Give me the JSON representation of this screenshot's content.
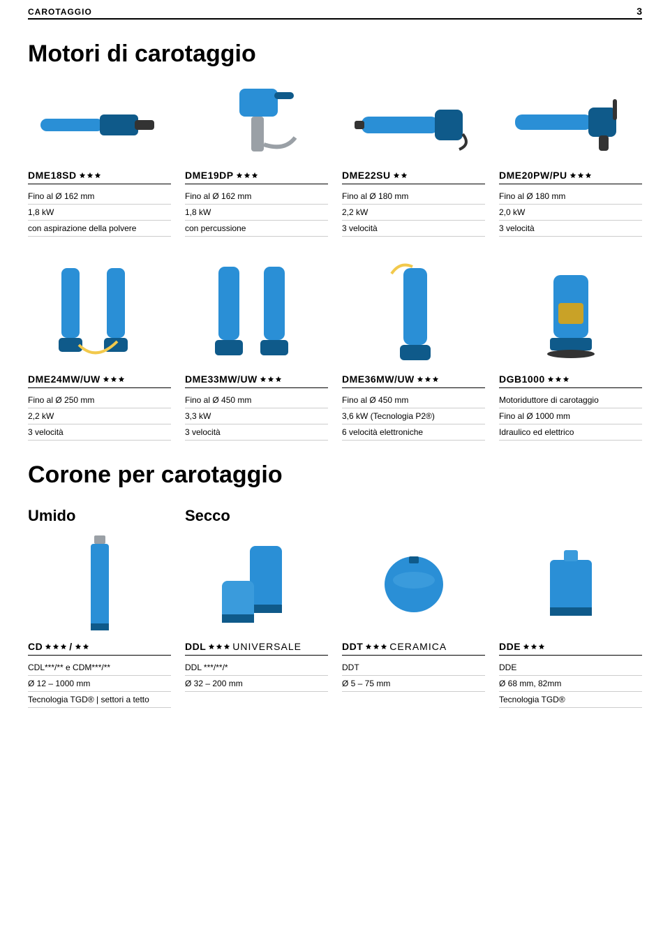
{
  "header": {
    "label": "CAROTAGGIO",
    "page": "3"
  },
  "section1": {
    "title": "Motori di carotaggio"
  },
  "row1": [
    {
      "name": "DME18SD",
      "stars": 3,
      "specs": [
        "Fino al Ø 162 mm",
        "1,8 kW",
        "con aspirazione della polvere"
      ]
    },
    {
      "name": "DME19DP",
      "stars": 3,
      "specs": [
        "Fino al Ø 162 mm",
        "1,8 kW",
        "con percussione"
      ]
    },
    {
      "name": "DME22SU",
      "stars": 2,
      "specs": [
        "Fino al Ø 180 mm",
        "2,2 kW",
        "3 velocità"
      ]
    },
    {
      "name": "DME20PW/PU",
      "stars": 3,
      "specs": [
        "Fino al Ø 180 mm",
        "2,0 kW",
        "3 velocità"
      ]
    }
  ],
  "row2": [
    {
      "name": "DME24MW/UW",
      "stars": 3,
      "specs": [
        "Fino al Ø 250 mm",
        "2,2 kW",
        "3 velocità"
      ]
    },
    {
      "name": "DME33MW/UW",
      "stars": 3,
      "specs": [
        "Fino al Ø 450 mm",
        "3,3 kW",
        "3 velocità"
      ]
    },
    {
      "name": "DME36MW/UW",
      "stars": 3,
      "specs": [
        "Fino al Ø 450 mm",
        "3,6 kW (Tecnologia P2®)",
        "6 velocità elettroniche"
      ]
    },
    {
      "name": "DGB1000",
      "stars": 3,
      "specs": [
        "Motoriduttore di carotaggio",
        "Fino al Ø 1000 mm",
        "Idraulico ed elettrico"
      ]
    }
  ],
  "section2": {
    "title": "Corone per carotaggio"
  },
  "row3_labels": {
    "left": "Umido",
    "right": "Secco"
  },
  "row3": [
    {
      "name": "CD",
      "stars": 3,
      "extra": " / ",
      "stars2": 2,
      "specs": [
        "CDL***/** e CDM***/**",
        "Ø 12 – 1000 mm",
        "Tecnologia TGD® | settori a tetto"
      ]
    },
    {
      "name": "DDL",
      "stars": 3,
      "suffix": " UNIVERSALE",
      "specs": [
        "DDL ***/**/*",
        "Ø 32 – 200 mm"
      ]
    },
    {
      "name": "DDT",
      "stars": 3,
      "suffix": " CERAMICA",
      "specs": [
        "DDT",
        "Ø 5 – 75 mm"
      ]
    },
    {
      "name": "DDE",
      "stars": 3,
      "specs": [
        "DDE",
        "Ø 68 mm, 82mm",
        "Tecnologia TGD®"
      ]
    }
  ],
  "colors": {
    "tool_blue": "#2a8fd6",
    "tool_dark": "#0f5a8a",
    "accent": "#333333"
  }
}
